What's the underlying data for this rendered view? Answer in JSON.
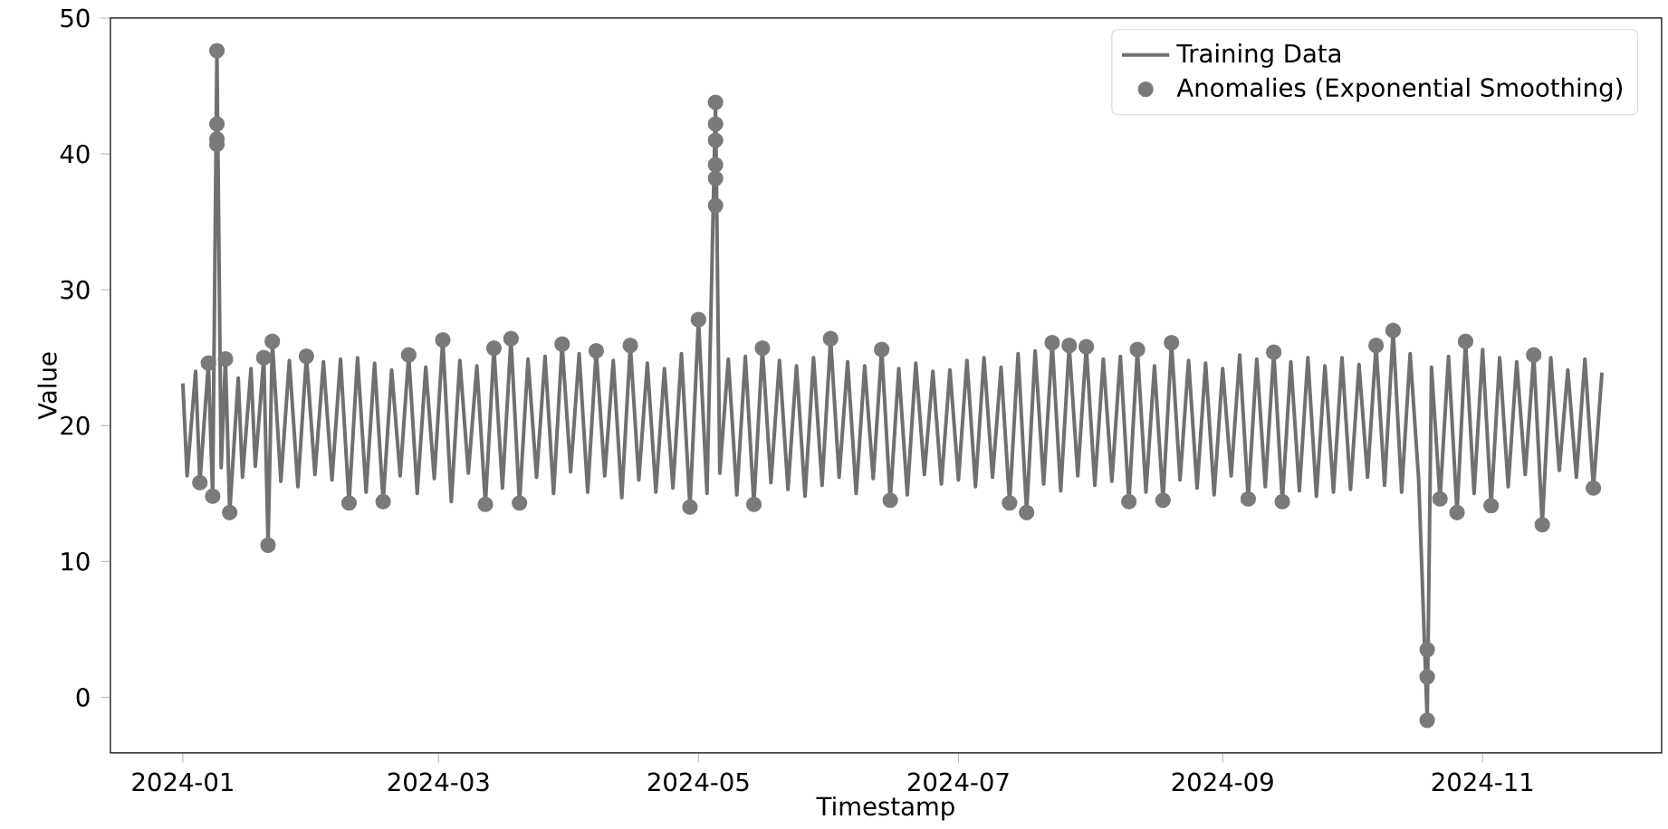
{
  "chart_data": {
    "type": "line",
    "xlabel": "Timestamp",
    "ylabel": "Value",
    "legend": "top right",
    "grid": false,
    "xlim": [
      "2023-12-15",
      "2024-12-13"
    ],
    "ylim": [
      -4.1,
      50
    ],
    "xticks": [
      {
        "value": "2024-01-01",
        "label": "2024-01"
      },
      {
        "value": "2024-03-01",
        "label": "2024-03"
      },
      {
        "value": "2024-05-01",
        "label": "2024-05"
      },
      {
        "value": "2024-07-01",
        "label": "2024-07"
      },
      {
        "value": "2024-09-01",
        "label": "2024-09"
      },
      {
        "value": "2024-11-01",
        "label": "2024-11"
      }
    ],
    "yticks": [
      0,
      10,
      20,
      30,
      40,
      50
    ],
    "series": [
      {
        "name": "Training Data",
        "color": "#707070",
        "line_style": "solid",
        "x": [
          "2024-01-01",
          "2024-01-02",
          "2024-01-04",
          "2024-01-05",
          "2024-01-07",
          "2024-01-08",
          "2024-01-09",
          "2024-01-10",
          "2024-01-11",
          "2024-01-12",
          "2024-01-14",
          "2024-01-15",
          "2024-01-17",
          "2024-01-18",
          "2024-01-20",
          "2024-01-21",
          "2024-01-22",
          "2024-01-24",
          "2024-01-26",
          "2024-01-28",
          "2024-01-30",
          "2024-02-01",
          "2024-02-03",
          "2024-02-05",
          "2024-02-07",
          "2024-02-09",
          "2024-02-11",
          "2024-02-13",
          "2024-02-15",
          "2024-02-17",
          "2024-02-19",
          "2024-02-21",
          "2024-02-23",
          "2024-02-25",
          "2024-02-27",
          "2024-02-29",
          "2024-03-02",
          "2024-03-04",
          "2024-03-06",
          "2024-03-08",
          "2024-03-10",
          "2024-03-12",
          "2024-03-14",
          "2024-03-16",
          "2024-03-18",
          "2024-03-20",
          "2024-03-22",
          "2024-03-24",
          "2024-03-26",
          "2024-03-28",
          "2024-03-30",
          "2024-04-01",
          "2024-04-03",
          "2024-04-05",
          "2024-04-07",
          "2024-04-09",
          "2024-04-11",
          "2024-04-13",
          "2024-04-15",
          "2024-04-17",
          "2024-04-19",
          "2024-04-21",
          "2024-04-23",
          "2024-04-25",
          "2024-04-27",
          "2024-04-29",
          "2024-05-01",
          "2024-05-03",
          "2024-05-05",
          "2024-05-06",
          "2024-05-08",
          "2024-05-10",
          "2024-05-12",
          "2024-05-14",
          "2024-05-16",
          "2024-05-18",
          "2024-05-20",
          "2024-05-22",
          "2024-05-24",
          "2024-05-26",
          "2024-05-28",
          "2024-05-30",
          "2024-06-01",
          "2024-06-03",
          "2024-06-05",
          "2024-06-07",
          "2024-06-09",
          "2024-06-11",
          "2024-06-13",
          "2024-06-15",
          "2024-06-17",
          "2024-06-19",
          "2024-06-21",
          "2024-06-23",
          "2024-06-25",
          "2024-06-27",
          "2024-06-29",
          "2024-07-01",
          "2024-07-03",
          "2024-07-05",
          "2024-07-07",
          "2024-07-09",
          "2024-07-11",
          "2024-07-13",
          "2024-07-15",
          "2024-07-17",
          "2024-07-19",
          "2024-07-21",
          "2024-07-23",
          "2024-07-25",
          "2024-07-27",
          "2024-07-29",
          "2024-07-31",
          "2024-08-02",
          "2024-08-04",
          "2024-08-06",
          "2024-08-08",
          "2024-08-10",
          "2024-08-12",
          "2024-08-14",
          "2024-08-16",
          "2024-08-18",
          "2024-08-20",
          "2024-08-22",
          "2024-08-24",
          "2024-08-26",
          "2024-08-28",
          "2024-08-30",
          "2024-09-01",
          "2024-09-03",
          "2024-09-05",
          "2024-09-07",
          "2024-09-09",
          "2024-09-11",
          "2024-09-13",
          "2024-09-15",
          "2024-09-17",
          "2024-09-19",
          "2024-09-21",
          "2024-09-23",
          "2024-09-25",
          "2024-09-27",
          "2024-09-29",
          "2024-10-01",
          "2024-10-03",
          "2024-10-05",
          "2024-10-07",
          "2024-10-09",
          "2024-10-11",
          "2024-10-13",
          "2024-10-15",
          "2024-10-17",
          "2024-10-19",
          "2024-10-20",
          "2024-10-22",
          "2024-10-24",
          "2024-10-26",
          "2024-10-28",
          "2024-10-30",
          "2024-11-01",
          "2024-11-03",
          "2024-11-05",
          "2024-11-07",
          "2024-11-09",
          "2024-11-11",
          "2024-11-13",
          "2024-11-15",
          "2024-11-17",
          "2024-11-19",
          "2024-11-21",
          "2024-11-23",
          "2024-11-25",
          "2024-11-27",
          "2024-11-29"
        ],
        "values": [
          23.1,
          16.3,
          24.0,
          15.8,
          24.6,
          14.8,
          47.6,
          16.9,
          24.9,
          13.6,
          23.5,
          16.2,
          24.2,
          17.0,
          25.0,
          11.2,
          26.2,
          15.9,
          24.8,
          15.5,
          25.1,
          16.4,
          24.7,
          16.0,
          24.9,
          14.3,
          25.0,
          15.1,
          24.6,
          14.4,
          24.1,
          16.3,
          25.2,
          15.0,
          24.3,
          16.1,
          26.3,
          14.4,
          24.8,
          16.5,
          24.4,
          14.2,
          25.7,
          15.4,
          26.4,
          14.3,
          24.9,
          16.2,
          25.1,
          15.0,
          26.0,
          16.6,
          25.3,
          15.1,
          25.5,
          16.3,
          24.8,
          14.7,
          25.9,
          16.0,
          24.6,
          15.1,
          24.2,
          15.4,
          25.3,
          14.0,
          27.8,
          15.0,
          43.8,
          16.5,
          24.9,
          14.9,
          25.1,
          14.2,
          25.7,
          15.8,
          24.8,
          15.3,
          24.4,
          14.8,
          25.0,
          15.6,
          26.4,
          16.2,
          24.7,
          15.0,
          24.4,
          16.1,
          25.6,
          14.5,
          24.2,
          14.9,
          24.6,
          16.4,
          24.0,
          15.7,
          24.1,
          16.0,
          24.8,
          15.5,
          25.0,
          16.2,
          24.3,
          14.3,
          25.3,
          13.6,
          25.5,
          15.7,
          26.1,
          15.2,
          25.9,
          16.3,
          25.8,
          15.6,
          24.9,
          15.9,
          25.1,
          14.4,
          25.6,
          15.1,
          24.4,
          14.5,
          26.1,
          16.0,
          24.8,
          15.4,
          24.6,
          14.9,
          24.2,
          16.3,
          25.2,
          14.6,
          24.9,
          15.5,
          25.4,
          14.4,
          24.7,
          15.2,
          25.0,
          14.8,
          24.4,
          15.1,
          25.0,
          15.3,
          24.5,
          16.2,
          25.9,
          15.6,
          27.0,
          15.1,
          25.3,
          16.0,
          -1.7,
          24.3,
          14.6,
          25.1,
          13.6,
          26.2,
          15.0,
          25.6,
          14.1,
          25.0,
          15.5,
          24.7,
          16.4,
          25.2,
          12.7,
          25.0,
          16.7,
          24.1,
          16.2,
          24.9,
          15.4,
          23.9
        ]
      },
      {
        "name": "Anomalies (Exponential Smoothing)",
        "type": "scatter",
        "color": "#7a7a7a",
        "marker": "circle",
        "x": [
          "2024-01-05",
          "2024-01-07",
          "2024-01-08",
          "2024-01-09",
          "2024-01-09",
          "2024-01-09",
          "2024-01-09",
          "2024-01-11",
          "2024-01-12",
          "2024-01-20",
          "2024-01-21",
          "2024-01-22",
          "2024-01-30",
          "2024-02-09",
          "2024-02-17",
          "2024-02-23",
          "2024-03-02",
          "2024-03-12",
          "2024-03-14",
          "2024-03-18",
          "2024-03-20",
          "2024-03-30",
          "2024-04-07",
          "2024-04-15",
          "2024-04-29",
          "2024-05-01",
          "2024-05-05",
          "2024-05-05",
          "2024-05-05",
          "2024-05-05",
          "2024-05-05",
          "2024-05-05",
          "2024-05-14",
          "2024-05-16",
          "2024-06-01",
          "2024-06-13",
          "2024-06-15",
          "2024-07-13",
          "2024-07-17",
          "2024-07-23",
          "2024-07-27",
          "2024-07-31",
          "2024-08-10",
          "2024-08-12",
          "2024-08-18",
          "2024-08-20",
          "2024-09-07",
          "2024-09-13",
          "2024-09-15",
          "2024-10-07",
          "2024-10-11",
          "2024-10-19",
          "2024-10-19",
          "2024-10-19",
          "2024-10-22",
          "2024-10-26",
          "2024-10-28",
          "2024-11-03",
          "2024-11-13",
          "2024-11-15",
          "2024-11-27"
        ],
        "values": [
          15.8,
          24.6,
          14.8,
          47.6,
          42.2,
          41.1,
          40.7,
          24.9,
          13.6,
          25.0,
          11.2,
          26.2,
          25.1,
          14.3,
          14.4,
          25.2,
          26.3,
          14.2,
          25.7,
          26.4,
          14.3,
          26.0,
          25.5,
          25.9,
          14.0,
          27.8,
          43.8,
          42.2,
          41.0,
          39.2,
          38.2,
          36.2,
          14.2,
          25.7,
          26.4,
          25.6,
          14.5,
          14.3,
          13.6,
          26.1,
          25.9,
          25.8,
          14.4,
          25.6,
          14.5,
          26.1,
          14.6,
          25.4,
          14.4,
          25.9,
          27.0,
          3.5,
          1.5,
          -1.7,
          14.6,
          13.6,
          26.2,
          14.1,
          25.2,
          12.7,
          15.4
        ]
      }
    ]
  }
}
